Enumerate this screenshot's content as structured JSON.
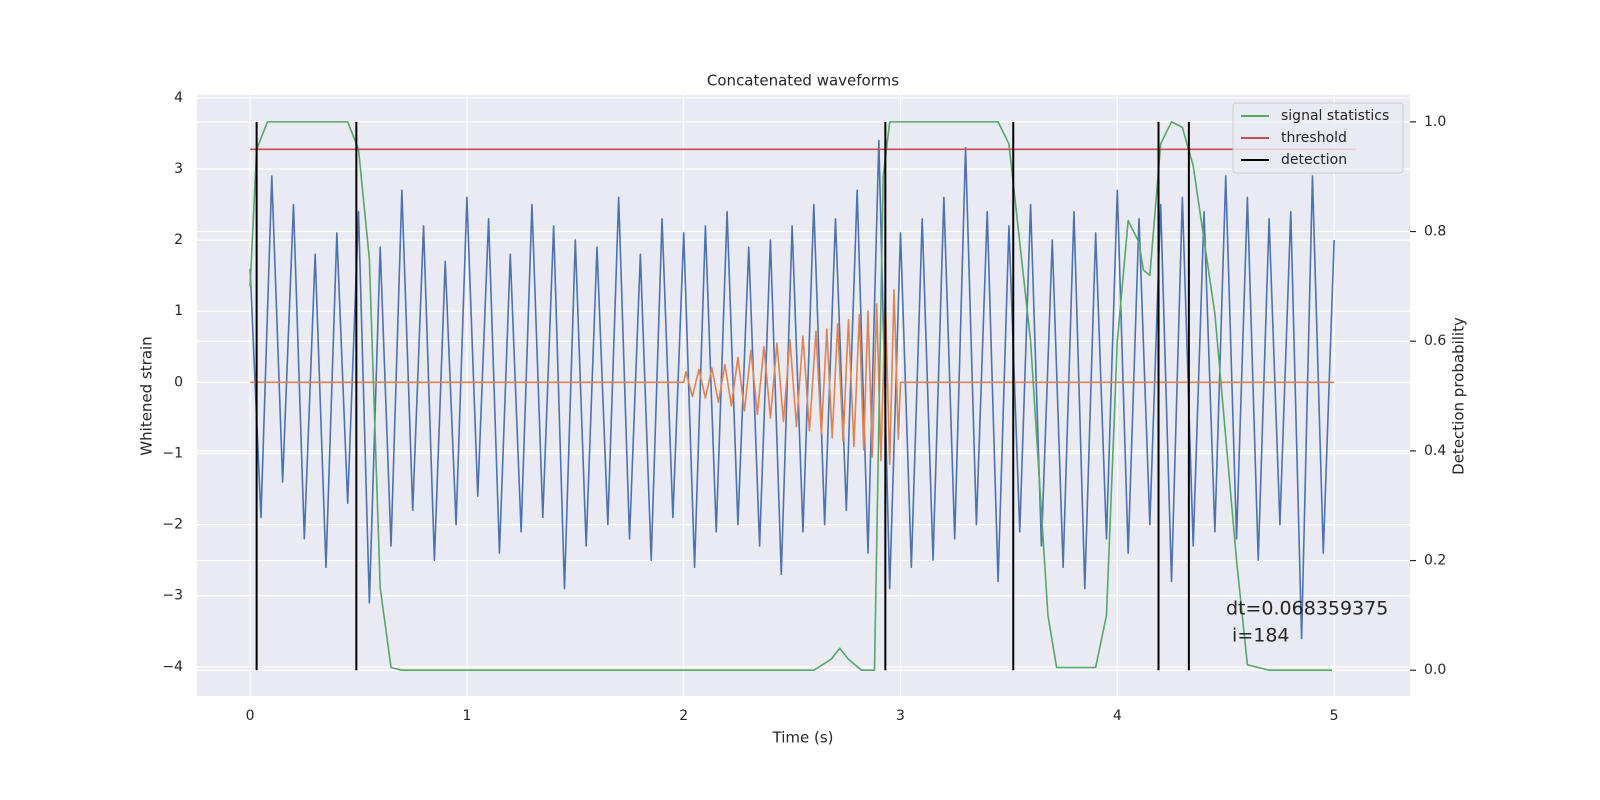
{
  "chart_data": {
    "type": "line",
    "title": "Concatenated waveforms",
    "xlabel": "Time (s)",
    "ylabel": "Whitened strain",
    "y2label": "Detection probability",
    "xlim": [
      -0.245,
      5.35
    ],
    "ylim": [
      -4.41,
      4.04
    ],
    "y2lim": [
      -0.047,
      1.049
    ],
    "xticks": [
      0,
      1,
      2,
      3,
      4,
      5
    ],
    "yticks": [
      {
        "value": -4,
        "label": "−4"
      },
      {
        "value": -3,
        "label": "−3"
      },
      {
        "value": -2,
        "label": "−2"
      },
      {
        "value": -1,
        "label": "−1"
      },
      0,
      1,
      2,
      3,
      4
    ],
    "y2ticks": [
      {
        "value": 0,
        "label": "0.0"
      },
      0.2,
      0.4,
      0.6,
      0.8,
      {
        "value": 1,
        "label": "1.0"
      }
    ],
    "grid": true,
    "legend": "upper right",
    "annotation_lines": [
      "dt=0.068359375",
      " i=184"
    ],
    "series": [
      {
        "color": "#4c72b0",
        "x": [
          0,
          0.05,
          0.1,
          0.15,
          0.2,
          0.25,
          0.3,
          0.35,
          0.4,
          0.45,
          0.5,
          0.55,
          0.6,
          0.65,
          0.7,
          0.75,
          0.8,
          0.85,
          0.9,
          0.95,
          1,
          1.05,
          1.1,
          1.15,
          1.2,
          1.25,
          1.3,
          1.35,
          1.4,
          1.45,
          1.5,
          1.55,
          1.6,
          1.65,
          1.7,
          1.75,
          1.8,
          1.85,
          1.9,
          1.95,
          2,
          2.05,
          2.1,
          2.15,
          2.2,
          2.25,
          2.3,
          2.35,
          2.4,
          2.45,
          2.5,
          2.55,
          2.6,
          2.65,
          2.7,
          2.75,
          2.8,
          2.85,
          2.9,
          2.95,
          3,
          3.05,
          3.1,
          3.15,
          3.2,
          3.25,
          3.3,
          3.35,
          3.4,
          3.45,
          3.5,
          3.55,
          3.6,
          3.65,
          3.7,
          3.75,
          3.8,
          3.85,
          3.9,
          3.95,
          4,
          4.05,
          4.1,
          4.15,
          4.2,
          4.25,
          4.3,
          4.35,
          4.4,
          4.45,
          4.5,
          4.55,
          4.6,
          4.65,
          4.7,
          4.75,
          4.8,
          4.85,
          4.9,
          4.95,
          5
        ],
        "values": [
          1.6,
          -1.9,
          2.9,
          -1.4,
          2.5,
          -2.2,
          1.8,
          -2.6,
          2.1,
          -1.7,
          2.4,
          -3.1,
          1.9,
          -2.3,
          2.7,
          -1.8,
          2.2,
          -2.5,
          1.7,
          -2.0,
          2.6,
          -1.6,
          2.3,
          -2.4,
          1.8,
          -2.1,
          2.5,
          -1.9,
          2.2,
          -2.9,
          2.0,
          -2.3,
          1.9,
          -2.0,
          2.6,
          -2.2,
          1.8,
          -2.5,
          2.3,
          -1.9,
          2.1,
          -2.6,
          2.2,
          -2.1,
          2.4,
          -2.0,
          1.9,
          -2.3,
          2.0,
          -2.7,
          2.2,
          -2.1,
          2.5,
          -2.0,
          2.3,
          -1.8,
          2.7,
          -2.4,
          3.4,
          -2.9,
          2.1,
          -2.6,
          2.3,
          -2.5,
          2.6,
          -2.2,
          3.3,
          -2.0,
          2.4,
          -2.8,
          2.2,
          -2.1,
          2.5,
          -2.3,
          2.0,
          -2.6,
          2.4,
          -2.9,
          2.1,
          -2.2,
          2.7,
          -2.4,
          2.3,
          -2.0,
          2.5,
          -2.8,
          2.6,
          -2.3,
          2.4,
          -2.1,
          2.9,
          -2.2,
          2.6,
          -2.5,
          2.3,
          -2.0,
          2.4,
          -3.6,
          2.9,
          -2.4,
          2.0
        ]
      },
      {
        "color": "#dd8452",
        "x": [
          0,
          2.0,
          2.01,
          2.04,
          2.07,
          2.1,
          2.13,
          2.16,
          2.19,
          2.22,
          2.25,
          2.28,
          2.31,
          2.34,
          2.37,
          2.4,
          2.43,
          2.46,
          2.49,
          2.52,
          2.55,
          2.58,
          2.61,
          2.635,
          2.66,
          2.685,
          2.71,
          2.735,
          2.76,
          2.785,
          2.81,
          2.83,
          2.85,
          2.87,
          2.89,
          2.91,
          2.93,
          2.95,
          2.97,
          2.99,
          3.0,
          5
        ],
        "values": [
          0,
          0,
          0.15,
          -0.2,
          0.18,
          -0.22,
          0.2,
          -0.28,
          0.25,
          -0.33,
          0.35,
          -0.4,
          0.45,
          -0.45,
          0.5,
          -0.5,
          0.55,
          -0.55,
          0.6,
          -0.62,
          0.65,
          -0.68,
          0.72,
          -0.72,
          0.75,
          -0.78,
          0.82,
          -0.82,
          0.88,
          -0.9,
          0.95,
          -0.95,
          1.0,
          -1.05,
          1.1,
          -1.1,
          1.2,
          -1.15,
          1.3,
          -0.8,
          0,
          0
        ]
      },
      {
        "name": "signal statistics",
        "color": "#55a868",
        "axis": "y2",
        "x": [
          0,
          0.03,
          0.08,
          0.45,
          0.5,
          0.55,
          0.6,
          0.65,
          0.7,
          2.6,
          2.68,
          2.72,
          2.76,
          2.82,
          2.88,
          2.92,
          2.95,
          3.45,
          3.5,
          3.6,
          3.68,
          3.72,
          3.9,
          3.95,
          4.0,
          4.05,
          4.1,
          4.12,
          4.15,
          4.2,
          4.25,
          4.3,
          4.35,
          4.45,
          4.55,
          4.6,
          4.7,
          4.99
        ],
        "values": [
          0.7,
          0.95,
          1.0,
          1.0,
          0.95,
          0.75,
          0.15,
          0.005,
          0,
          0,
          0.02,
          0.04,
          0.02,
          0,
          0,
          0.9,
          1.0,
          1.0,
          0.96,
          0.6,
          0.1,
          0.005,
          0.005,
          0.1,
          0.6,
          0.82,
          0.78,
          0.73,
          0.72,
          0.96,
          1.0,
          0.99,
          0.92,
          0.65,
          0.2,
          0.01,
          0,
          0
        ]
      },
      {
        "name": "threshold",
        "color": "#c44e52",
        "axis": "y2",
        "x": [
          0,
          5.1
        ],
        "values": [
          0.95,
          0.95
        ]
      },
      {
        "name": "detection",
        "color": "#000000",
        "axis": "y2",
        "x": [
          0.03,
          0.49,
          2.93,
          3.52,
          4.19,
          4.33
        ],
        "span": [
          0,
          1
        ]
      }
    ]
  }
}
